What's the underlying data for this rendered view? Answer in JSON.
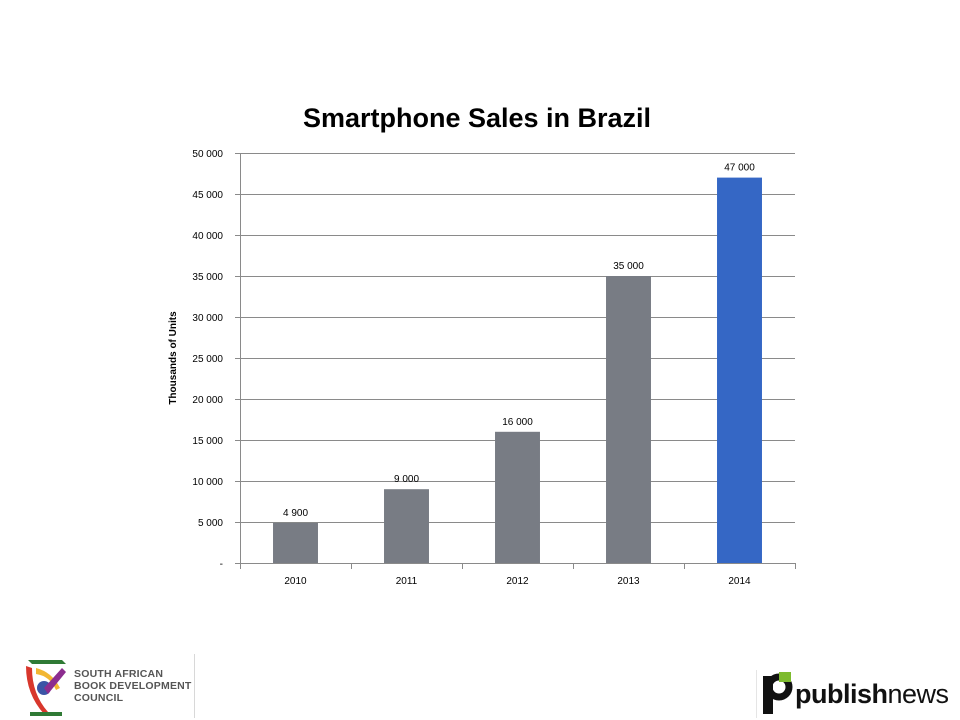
{
  "chart_data": {
    "type": "bar",
    "title": "Smartphone Sales in Brazil",
    "ylabel": "Thousands  of Units",
    "xlabel": "",
    "categories": [
      "2010",
      "2011",
      "2012",
      "2013",
      "2014"
    ],
    "values": [
      4900,
      9000,
      16000,
      35000,
      47000
    ],
    "data_labels": [
      "4 900",
      "9 000",
      "16 000",
      "35 000",
      "47 000"
    ],
    "ylim": [
      0,
      50000
    ],
    "yticks": [
      0,
      5000,
      10000,
      15000,
      20000,
      25000,
      30000,
      35000,
      40000,
      45000,
      50000
    ],
    "ytick_labels": [
      "-",
      "5 000",
      "10 000",
      "15 000",
      "20 000",
      "25 000",
      "30 000",
      "35 000",
      "40 000",
      "45 000",
      "50 000"
    ],
    "grid": true,
    "bar_colors": [
      "#787c84",
      "#787c84",
      "#787c84",
      "#787c84",
      "#3567c5"
    ]
  },
  "logos": {
    "left": {
      "lines": [
        "SOUTH AFRICAN",
        "BOOK DEVELOPMENT",
        "COUNCIL"
      ]
    },
    "right": {
      "bold": "publish",
      "normal": "news"
    }
  }
}
